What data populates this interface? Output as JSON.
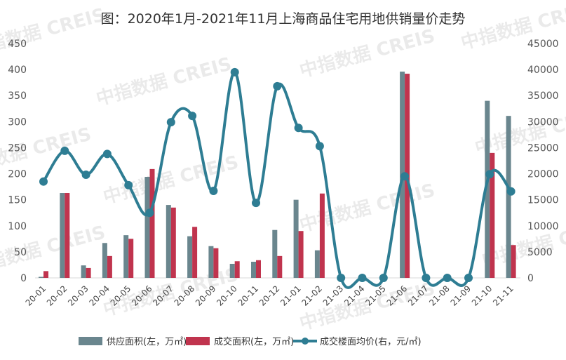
{
  "title": "图：2020年1月-2021年11月上海商品住宅用地供销量价走势",
  "watermark": "中指数据 CREIS",
  "colors": {
    "supply": "#6a868e",
    "sales": "#c0344e",
    "price": "#2e7d93",
    "axis": "#d9d9d9",
    "text": "#555555"
  },
  "chart_data": {
    "type": "bar+line",
    "title": "图：2020年1月-2021年11月上海商品住宅用地供销量价走势",
    "categories": [
      "20-01",
      "20-02",
      "20-03",
      "20-04",
      "20-05",
      "20-06",
      "20-07",
      "20-08",
      "20-09",
      "20-10",
      "20-11",
      "20-12",
      "21-01",
      "21-02",
      "21-03",
      "21-04",
      "21-05",
      "21-06",
      "21-07",
      "21-08",
      "21-09",
      "21-10",
      "21-11"
    ],
    "series": [
      {
        "name": "供应面积(左，万㎡)",
        "type": "bar",
        "axis": "left",
        "values": [
          2,
          163,
          24,
          67,
          82,
          194,
          140,
          80,
          61,
          27,
          31,
          92,
          150,
          53,
          0,
          0,
          0,
          396,
          0,
          0,
          0,
          340,
          311
        ]
      },
      {
        "name": "成交面积(左，万㎡)",
        "type": "bar",
        "axis": "left",
        "values": [
          13,
          163,
          19,
          42,
          75,
          209,
          135,
          98,
          57,
          32,
          34,
          42,
          90,
          162,
          0,
          0,
          0,
          392,
          0,
          0,
          0,
          240,
          63
        ]
      },
      {
        "name": "成交楼面均价(右，元/㎡)",
        "type": "line",
        "axis": "right",
        "values": [
          18500,
          24400,
          19800,
          23800,
          17800,
          12500,
          29900,
          31100,
          16700,
          39500,
          14400,
          36800,
          28800,
          25300,
          0,
          0,
          0,
          19500,
          0,
          0,
          0,
          19900,
          16600
        ]
      }
    ],
    "left_axis": {
      "ticks": [
        "0",
        "50",
        "100",
        "150",
        "200",
        "250",
        "300",
        "350",
        "400",
        "450"
      ],
      "ylim": [
        0,
        450
      ]
    },
    "right_axis": {
      "ticks": [
        "0",
        "5000",
        "10000",
        "15000",
        "20000",
        "25000",
        "30000",
        "35000",
        "40000",
        "45000"
      ],
      "ylim": [
        0,
        45000
      ]
    },
    "xlabel": "",
    "ylabel_left": "",
    "ylabel_right": "",
    "grid": false,
    "legend_position": "bottom"
  },
  "legend": {
    "supply": "供应面积(左，万㎡)",
    "sales": "成交面积(左，万㎡)",
    "price": "成交楼面均价(右，元/㎡)"
  }
}
